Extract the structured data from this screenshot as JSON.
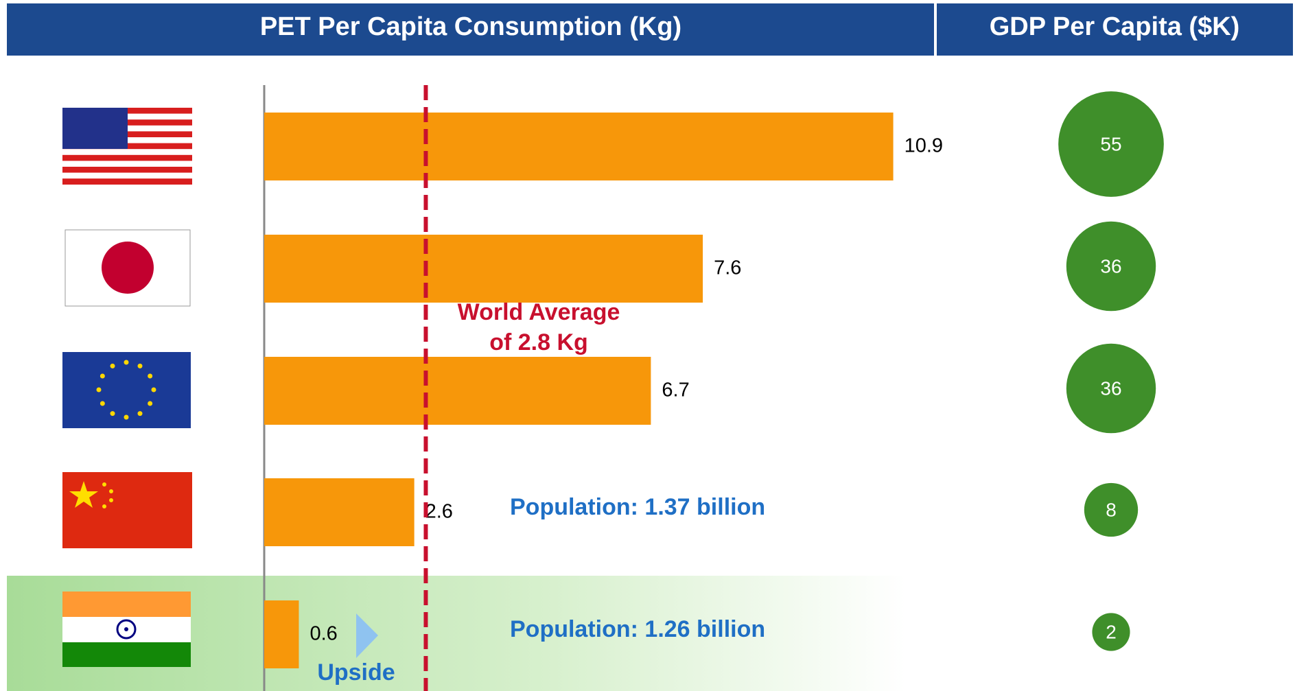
{
  "chart_data": [
    {
      "type": "bar",
      "orientation": "horizontal",
      "title": "PET Per Capita Consumption (Kg)",
      "categories": [
        null,
        null,
        null,
        null,
        null
      ],
      "values": [
        10.9,
        7.6,
        6.7,
        2.6,
        0.6
      ],
      "color": "#f7970a",
      "xlim": [
        0,
        11
      ],
      "reference_line": {
        "value": 2.8,
        "label": [
          "World Average",
          "of 2.8 Kg"
        ],
        "color": "#c8102e"
      },
      "annotations": [
        {
          "category": 3,
          "text": "Population: 1.37 billion"
        },
        {
          "category": 4,
          "text": "Population: 1.26 billion"
        },
        {
          "category": 4,
          "text": "Upside"
        }
      ]
    },
    {
      "type": "bubble",
      "title": "GDP Per Capita ($K)",
      "values": [
        55,
        36,
        36,
        8,
        2
      ],
      "color": "#3f8f2a"
    }
  ]
}
